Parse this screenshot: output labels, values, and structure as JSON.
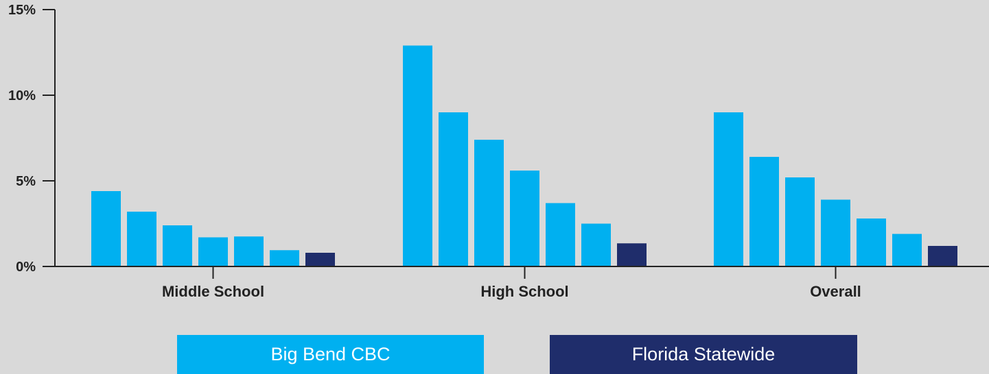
{
  "chart_data": {
    "type": "bar",
    "categories": [
      "Middle School",
      "High School",
      "Overall"
    ],
    "series": [
      {
        "name": "Big Bend CBC",
        "color": "#00b0f0",
        "values": [
          4.4,
          12.9,
          9.0
        ]
      },
      {
        "name": "Big Bend CBC",
        "color": "#00b0f0",
        "values": [
          3.2,
          9.0,
          6.4
        ]
      },
      {
        "name": "Big Bend CBC",
        "color": "#00b0f0",
        "values": [
          2.4,
          7.4,
          5.2
        ]
      },
      {
        "name": "Big Bend CBC",
        "color": "#00b0f0",
        "values": [
          1.7,
          5.6,
          3.9
        ]
      },
      {
        "name": "Big Bend CBC",
        "color": "#00b0f0",
        "values": [
          1.75,
          3.7,
          2.8
        ]
      },
      {
        "name": "Big Bend CBC",
        "color": "#00b0f0",
        "values": [
          0.95,
          2.5,
          1.9
        ]
      },
      {
        "name": "Florida Statewide",
        "color": "#1f2d6b",
        "values": [
          0.8,
          1.35,
          1.2
        ]
      }
    ],
    "yticks": [
      "0%",
      "5%",
      "10%",
      "15%"
    ],
    "ytick_values": [
      0,
      5,
      10,
      15
    ],
    "ylim": [
      0,
      15
    ],
    "grid": false,
    "legend": {
      "placement": "bottom",
      "entries": [
        {
          "label": "Big Bend CBC",
          "color": "#00b0f0"
        },
        {
          "label": "Florida Statewide",
          "color": "#1f2d6b"
        }
      ]
    }
  }
}
